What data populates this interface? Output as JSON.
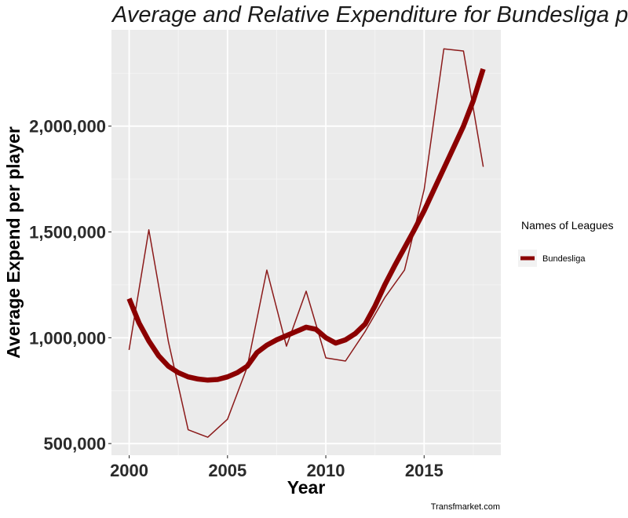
{
  "chart_data": {
    "type": "line",
    "title": "Average and Relative  Expenditure for Bundesliga  per player",
    "xlabel": "Year",
    "ylabel": "Average Expend  per player",
    "caption": "Transfmarket.com",
    "xlim": [
      1999.1,
      2018.9
    ],
    "ylim": [
      445000,
      2455000
    ],
    "x_ticks": [
      2000,
      2005,
      2010,
      2015
    ],
    "x_tick_labels": [
      "2000",
      "2005",
      "2010",
      "2015"
    ],
    "y_ticks": [
      500000,
      1000000,
      1500000,
      2000000
    ],
    "y_tick_labels": [
      "500,000",
      "1,000,000",
      "1,500,000",
      "2,000,000"
    ],
    "grid": true,
    "legend": {
      "title": "Names of Leagues",
      "position": "right",
      "entries": [
        "Bundesliga"
      ]
    },
    "series": [
      {
        "name": "Bundesliga",
        "kind": "observed",
        "color": "#8b1a1a",
        "x": [
          2000,
          2001,
          2002,
          2003,
          2004,
          2005,
          2006,
          2007,
          2008,
          2009,
          2010,
          2011,
          2012,
          2013,
          2014,
          2015,
          2016,
          2017,
          2018
        ],
        "y": [
          945000,
          1510000,
          980000,
          565000,
          530000,
          615000,
          860000,
          1320000,
          960000,
          1220000,
          905000,
          890000,
          1030000,
          1190000,
          1320000,
          1700000,
          2365000,
          2355000,
          1810000
        ]
      },
      {
        "name": "Bundesliga",
        "kind": "smoothed",
        "color": "#8b0000",
        "x": [
          2000,
          2000.5,
          2001,
          2001.5,
          2002,
          2002.5,
          2003,
          2003.5,
          2004,
          2004.5,
          2005,
          2005.5,
          2006,
          2006.5,
          2007,
          2007.5,
          2008,
          2008.5,
          2009,
          2009.5,
          2010,
          2010.5,
          2011,
          2011.5,
          2012,
          2012.5,
          2013,
          2013.5,
          2014,
          2014.5,
          2015,
          2015.5,
          2016,
          2016.5,
          2017,
          2017.5,
          2018
        ],
        "y": [
          1185000,
          1070000,
          985000,
          915000,
          865000,
          835000,
          815000,
          805000,
          800000,
          803000,
          815000,
          835000,
          865000,
          930000,
          965000,
          990000,
          1010000,
          1030000,
          1050000,
          1040000,
          1000000,
          975000,
          990000,
          1020000,
          1065000,
          1150000,
          1250000,
          1340000,
          1425000,
          1510000,
          1600000,
          1700000,
          1800000,
          1900000,
          2000000,
          2120000,
          2270000
        ]
      }
    ]
  }
}
